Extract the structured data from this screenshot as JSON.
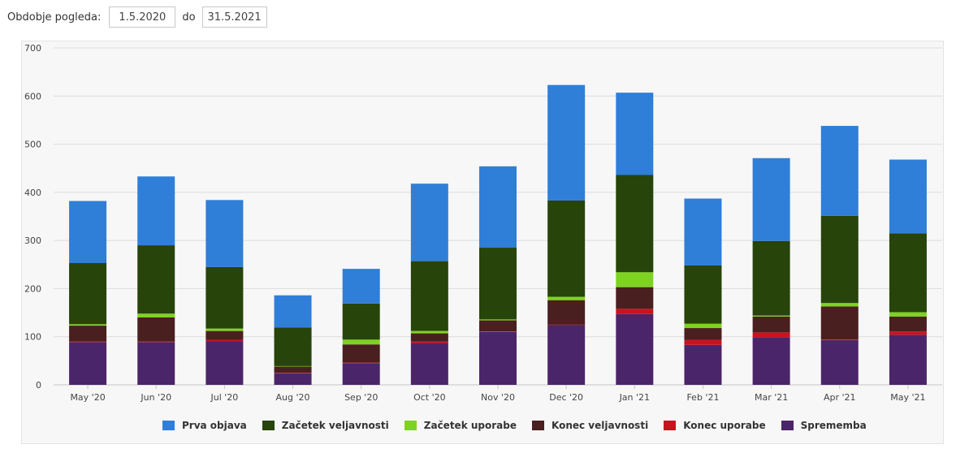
{
  "filter": {
    "label": "Obdobje pogleda:",
    "from_value": "1.5.2020",
    "separator": "do",
    "to_value": "31.5.2021"
  },
  "chart_data": {
    "type": "bar",
    "stacked": true,
    "title": "",
    "xlabel": "",
    "ylabel": "",
    "ylim": [
      0,
      700
    ],
    "yticks": [
      0,
      100,
      200,
      300,
      400,
      500,
      600,
      700
    ],
    "grid": true,
    "legend_position": "bottom",
    "categories": [
      "May '20",
      "Jun '20",
      "Jul '20",
      "Aug '20",
      "Sep '20",
      "Oct '20",
      "Nov '20",
      "Dec '20",
      "Jan '21",
      "Feb '21",
      "Mar '21",
      "Apr '21",
      "May '21"
    ],
    "series": [
      {
        "name": "Sprememba",
        "color": "#4b2569",
        "values": [
          89,
          89,
          91,
          24,
          44,
          87,
          110,
          124,
          147,
          83,
          99,
          93,
          104
        ]
      },
      {
        "name": "Konec uporabe",
        "color": "#c8141e",
        "values": [
          1,
          1,
          2,
          1,
          2,
          3,
          1,
          1,
          11,
          10,
          10,
          1,
          7
        ]
      },
      {
        "name": "Konec veljavnosti",
        "color": "#4a1f1f",
        "values": [
          33,
          50,
          19,
          13,
          38,
          17,
          23,
          51,
          45,
          25,
          33,
          69,
          31
        ]
      },
      {
        "name": "Začetek uporabe",
        "color": "#7ed321",
        "values": [
          3,
          8,
          5,
          1,
          10,
          5,
          2,
          7,
          31,
          9,
          2,
          7,
          9
        ]
      },
      {
        "name": "Začetek veljavnosti",
        "color": "#27440a",
        "values": [
          127,
          142,
          128,
          80,
          75,
          145,
          149,
          200,
          202,
          121,
          155,
          181,
          164
        ]
      },
      {
        "name": "Prva objava",
        "color": "#2f7fd8",
        "values": [
          129,
          143,
          139,
          67,
          72,
          161,
          169,
          240,
          171,
          139,
          172,
          187,
          153
        ]
      }
    ]
  },
  "legend": [
    {
      "name": "Prva objava",
      "color": "#2f7fd8"
    },
    {
      "name": "Začetek veljavnosti",
      "color": "#27440a"
    },
    {
      "name": "Začetek uporabe",
      "color": "#7ed321"
    },
    {
      "name": "Konec veljavnosti",
      "color": "#4a1f1f"
    },
    {
      "name": "Konec uporabe",
      "color": "#c8141e"
    },
    {
      "name": "Sprememba",
      "color": "#4b2569"
    }
  ]
}
